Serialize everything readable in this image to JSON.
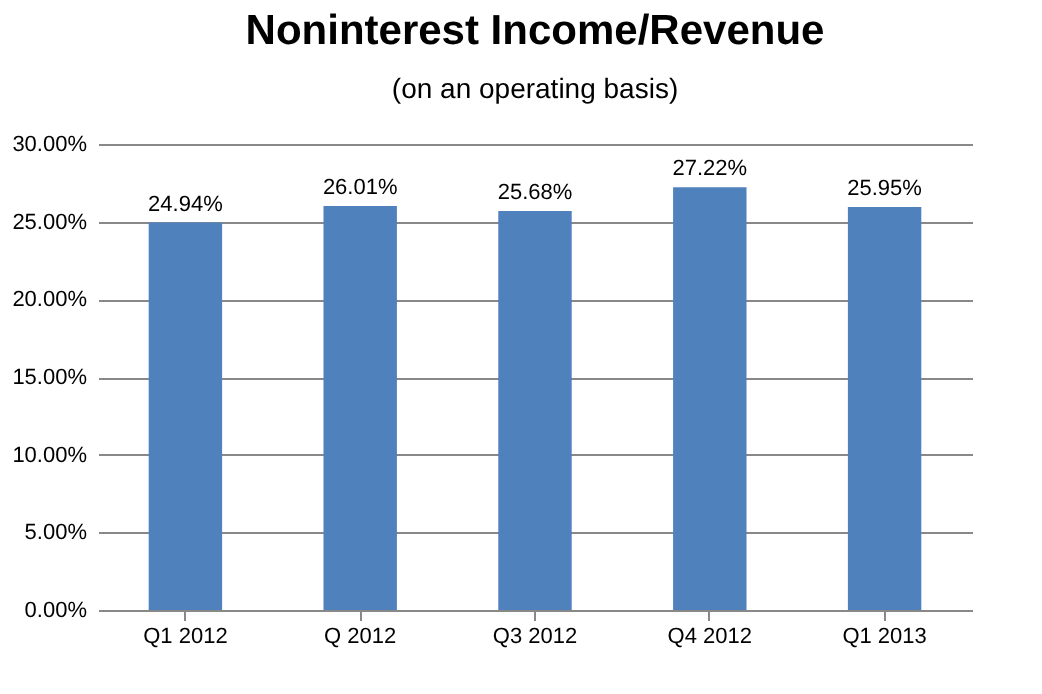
{
  "chart_data": {
    "type": "bar",
    "title": "Noninterest Income/Revenue",
    "subtitle": "(on an operating basis)",
    "categories": [
      "Q1 2012",
      "Q 2012",
      "Q3 2012",
      "Q4 2012",
      "Q1 2013"
    ],
    "values": [
      24.94,
      26.01,
      25.68,
      27.22,
      25.95
    ],
    "value_labels": [
      "24.94%",
      "26.01%",
      "25.68%",
      "27.22%",
      "25.95%"
    ],
    "color": "#4f81bd",
    "ylim": [
      0,
      30
    ],
    "yticks": [
      {
        "value": 0,
        "label": "0.00%"
      },
      {
        "value": 5,
        "label": "5.00%"
      },
      {
        "value": 10,
        "label": "10.00%"
      },
      {
        "value": 15,
        "label": "15.00%"
      },
      {
        "value": 20,
        "label": "20.00%"
      },
      {
        "value": 25,
        "label": "25.00%"
      },
      {
        "value": 30,
        "label": "30.00%"
      }
    ],
    "grid": "y"
  }
}
